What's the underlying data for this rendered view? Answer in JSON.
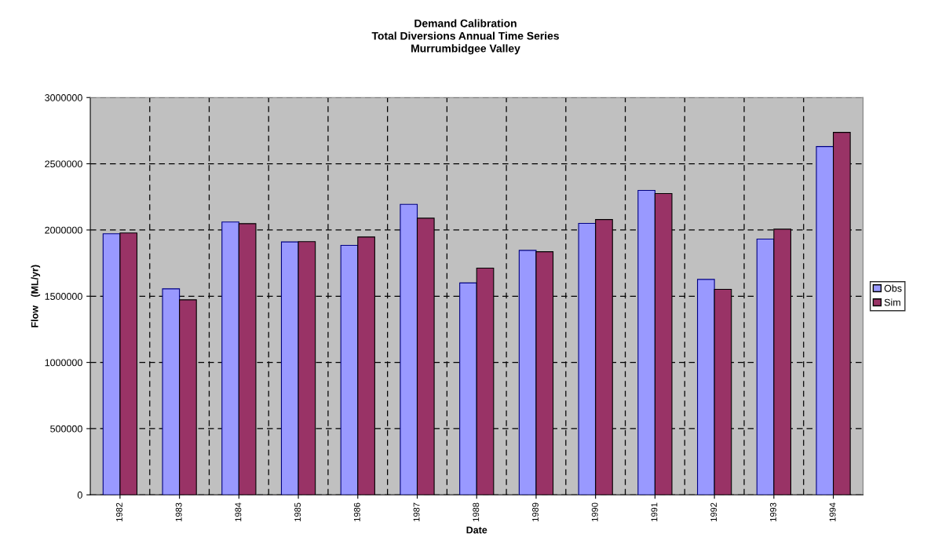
{
  "chart_data": {
    "type": "bar",
    "title": "Demand Calibration\nTotal Diversions Annual Time Series\nMurrumbidgee Valley",
    "xlabel": "Date",
    "ylabel": "Flow   (ML/yr)",
    "categories": [
      "1982",
      "1983",
      "1984",
      "1985",
      "1986",
      "1987",
      "1988",
      "1989",
      "1990",
      "1991",
      "1992",
      "1993",
      "1994"
    ],
    "series": [
      {
        "name": "Obs",
        "color": "#9999ff",
        "values": [
          1971000,
          1556000,
          2060000,
          1910000,
          1884000,
          2194000,
          1600000,
          1846000,
          2050000,
          2299000,
          1627000,
          1931000,
          2630000
        ]
      },
      {
        "name": "Sim",
        "color": "#993366",
        "values": [
          1977000,
          1473000,
          2048000,
          1912000,
          1947000,
          2089000,
          1712000,
          1836000,
          2079000,
          2275000,
          1552000,
          2006000,
          2737000
        ]
      }
    ],
    "ylim": [
      0,
      3000000
    ],
    "yticks": [
      0,
      500000,
      1000000,
      1500000,
      2000000,
      2500000,
      3000000
    ],
    "grid": true,
    "legend": "right"
  }
}
